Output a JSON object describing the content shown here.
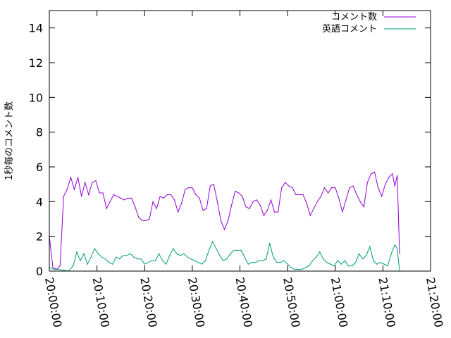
{
  "chart_data": {
    "type": "line",
    "title": "",
    "xlabel": "",
    "ylabel": "1秒毎のコメント数",
    "ylim": [
      0,
      15
    ],
    "xlim": [
      "20:00:00",
      "21:20:00"
    ],
    "grid": false,
    "legend_position": "top-right",
    "y_ticks": [
      "0",
      "2",
      "4",
      "6",
      "8",
      "10",
      "12",
      "14"
    ],
    "x_ticks": [
      "20:00:00",
      "20:10:00",
      "20:20:00",
      "20:30:00",
      "20:40:00",
      "20:50:00",
      "21:00:00",
      "21:10:00",
      "21:20:00"
    ],
    "series": [
      {
        "name": "コメント数",
        "color": "#9400d3",
        "points": [
          [
            "20:00:00",
            2.0
          ],
          [
            "20:00:45",
            0.2
          ],
          [
            "20:01:30",
            0.1
          ],
          [
            "20:02:15",
            0.3
          ],
          [
            "20:03:00",
            4.3
          ],
          [
            "20:03:45",
            4.7
          ],
          [
            "20:04:30",
            5.4
          ],
          [
            "20:05:15",
            4.7
          ],
          [
            "20:06:00",
            5.4
          ],
          [
            "20:06:45",
            4.3
          ],
          [
            "20:07:30",
            5.1
          ],
          [
            "20:08:15",
            4.4
          ],
          [
            "20:09:00",
            5.1
          ],
          [
            "20:09:45",
            5.2
          ],
          [
            "20:10:30",
            4.5
          ],
          [
            "20:11:15",
            4.5
          ],
          [
            "20:12:00",
            3.6
          ],
          [
            "20:12:45",
            4.0
          ],
          [
            "20:13:30",
            4.4
          ],
          [
            "20:14:15",
            4.3
          ],
          [
            "20:15:00",
            4.2
          ],
          [
            "20:15:45",
            4.1
          ],
          [
            "20:16:30",
            4.2
          ],
          [
            "20:17:15",
            4.2
          ],
          [
            "20:18:00",
            3.7
          ],
          [
            "20:18:45",
            3.1
          ],
          [
            "20:19:30",
            2.9
          ],
          [
            "20:20:15",
            2.9
          ],
          [
            "20:21:00",
            3.0
          ],
          [
            "20:21:45",
            4.0
          ],
          [
            "20:22:30",
            3.6
          ],
          [
            "20:23:15",
            4.3
          ],
          [
            "20:24:00",
            4.2
          ],
          [
            "20:24:45",
            4.4
          ],
          [
            "20:25:30",
            4.4
          ],
          [
            "20:26:15",
            4.1
          ],
          [
            "20:27:00",
            3.4
          ],
          [
            "20:27:45",
            3.9
          ],
          [
            "20:28:30",
            4.7
          ],
          [
            "20:29:15",
            4.8
          ],
          [
            "20:30:00",
            4.8
          ],
          [
            "20:30:45",
            4.4
          ],
          [
            "20:31:30",
            4.2
          ],
          [
            "20:32:15",
            3.5
          ],
          [
            "20:33:00",
            3.6
          ],
          [
            "20:33:45",
            4.9
          ],
          [
            "20:34:30",
            5.0
          ],
          [
            "20:35:15",
            4.0
          ],
          [
            "20:36:00",
            2.9
          ],
          [
            "20:36:45",
            2.4
          ],
          [
            "20:37:30",
            2.9
          ],
          [
            "20:38:15",
            3.8
          ],
          [
            "20:39:00",
            4.6
          ],
          [
            "20:39:45",
            4.5
          ],
          [
            "20:40:30",
            4.3
          ],
          [
            "20:41:15",
            3.7
          ],
          [
            "20:42:00",
            3.6
          ],
          [
            "20:42:45",
            4.0
          ],
          [
            "20:43:30",
            4.1
          ],
          [
            "20:44:15",
            3.8
          ],
          [
            "20:45:00",
            3.2
          ],
          [
            "20:45:45",
            3.5
          ],
          [
            "20:46:30",
            4.1
          ],
          [
            "20:47:15",
            3.4
          ],
          [
            "20:48:00",
            3.4
          ],
          [
            "20:48:45",
            4.8
          ],
          [
            "20:49:30",
            5.1
          ],
          [
            "20:50:15",
            4.9
          ],
          [
            "20:51:00",
            4.8
          ],
          [
            "20:51:45",
            4.4
          ],
          [
            "20:52:30",
            4.4
          ],
          [
            "20:53:15",
            4.4
          ],
          [
            "20:54:00",
            3.9
          ],
          [
            "20:54:45",
            3.2
          ],
          [
            "20:55:30",
            3.6
          ],
          [
            "20:56:15",
            4.0
          ],
          [
            "20:57:00",
            4.3
          ],
          [
            "20:57:45",
            4.8
          ],
          [
            "20:58:30",
            4.5
          ],
          [
            "20:59:15",
            4.8
          ],
          [
            "21:00:00",
            4.8
          ],
          [
            "21:00:45",
            4.2
          ],
          [
            "21:01:30",
            3.4
          ],
          [
            "21:02:15",
            4.1
          ],
          [
            "21:03:00",
            4.8
          ],
          [
            "21:03:45",
            4.9
          ],
          [
            "21:04:30",
            4.4
          ],
          [
            "21:05:15",
            4.0
          ],
          [
            "21:06:00",
            3.7
          ],
          [
            "21:06:45",
            5.1
          ],
          [
            "21:07:30",
            5.6
          ],
          [
            "21:08:15",
            5.7
          ],
          [
            "21:09:00",
            4.8
          ],
          [
            "21:09:45",
            4.3
          ],
          [
            "21:10:30",
            5.0
          ],
          [
            "21:11:15",
            5.4
          ],
          [
            "21:12:00",
            5.6
          ],
          [
            "21:12:30",
            4.9
          ],
          [
            "21:13:00",
            5.5
          ],
          [
            "21:13:30",
            1.0
          ]
        ]
      },
      {
        "name": "英語コメント",
        "color": "#009e73",
        "points": [
          [
            "20:00:00",
            0.2
          ],
          [
            "20:01:00",
            0.1
          ],
          [
            "20:02:00",
            0.1
          ],
          [
            "20:03:00",
            0.05
          ],
          [
            "20:04:00",
            0.0
          ],
          [
            "20:05:00",
            0.3
          ],
          [
            "20:05:45",
            1.1
          ],
          [
            "20:06:30",
            0.6
          ],
          [
            "20:07:15",
            1.0
          ],
          [
            "20:08:00",
            0.4
          ],
          [
            "20:08:45",
            0.8
          ],
          [
            "20:09:30",
            1.3
          ],
          [
            "20:10:15",
            1.0
          ],
          [
            "20:11:00",
            0.8
          ],
          [
            "20:11:45",
            0.7
          ],
          [
            "20:12:30",
            0.5
          ],
          [
            "20:13:15",
            0.4
          ],
          [
            "20:14:00",
            0.8
          ],
          [
            "20:14:45",
            0.7
          ],
          [
            "20:15:30",
            0.9
          ],
          [
            "20:16:15",
            0.9
          ],
          [
            "20:17:00",
            1.0
          ],
          [
            "20:17:45",
            0.8
          ],
          [
            "20:18:30",
            0.7
          ],
          [
            "20:19:15",
            0.7
          ],
          [
            "20:20:00",
            0.4
          ],
          [
            "20:20:45",
            0.5
          ],
          [
            "20:21:30",
            0.6
          ],
          [
            "20:22:15",
            0.6
          ],
          [
            "20:23:00",
            1.0
          ],
          [
            "20:23:45",
            0.6
          ],
          [
            "20:24:30",
            0.4
          ],
          [
            "20:25:15",
            0.9
          ],
          [
            "20:26:00",
            1.3
          ],
          [
            "20:26:45",
            1.0
          ],
          [
            "20:27:30",
            0.9
          ],
          [
            "20:28:15",
            1.0
          ],
          [
            "20:29:00",
            0.8
          ],
          [
            "20:29:45",
            0.7
          ],
          [
            "20:30:30",
            0.6
          ],
          [
            "20:31:15",
            0.5
          ],
          [
            "20:32:00",
            0.4
          ],
          [
            "20:32:45",
            0.6
          ],
          [
            "20:33:30",
            1.2
          ],
          [
            "20:34:15",
            1.7
          ],
          [
            "20:35:00",
            1.3
          ],
          [
            "20:35:45",
            0.9
          ],
          [
            "20:36:30",
            0.6
          ],
          [
            "20:37:15",
            0.7
          ],
          [
            "20:38:00",
            1.0
          ],
          [
            "20:38:45",
            1.2
          ],
          [
            "20:39:30",
            1.2
          ],
          [
            "20:40:15",
            1.2
          ],
          [
            "20:41:00",
            0.8
          ],
          [
            "20:41:45",
            0.4
          ],
          [
            "20:42:30",
            0.5
          ],
          [
            "20:43:15",
            0.5
          ],
          [
            "20:44:00",
            0.6
          ],
          [
            "20:44:45",
            0.6
          ],
          [
            "20:45:30",
            0.7
          ],
          [
            "20:46:15",
            1.6
          ],
          [
            "20:47:00",
            0.8
          ],
          [
            "20:47:45",
            0.5
          ],
          [
            "20:48:30",
            0.5
          ],
          [
            "20:49:15",
            0.6
          ],
          [
            "20:50:00",
            0.4
          ],
          [
            "20:50:45",
            0.2
          ],
          [
            "20:51:30",
            0.1
          ],
          [
            "20:52:15",
            0.1
          ],
          [
            "20:53:00",
            0.1
          ],
          [
            "20:53:45",
            0.2
          ],
          [
            "20:54:30",
            0.3
          ],
          [
            "20:55:15",
            0.6
          ],
          [
            "20:56:00",
            0.8
          ],
          [
            "20:56:45",
            1.1
          ],
          [
            "20:57:30",
            0.7
          ],
          [
            "20:58:15",
            0.5
          ],
          [
            "20:59:00",
            0.4
          ],
          [
            "20:59:45",
            0.3
          ],
          [
            "21:00:30",
            0.6
          ],
          [
            "21:01:15",
            0.4
          ],
          [
            "21:02:00",
            0.6
          ],
          [
            "21:02:45",
            0.3
          ],
          [
            "21:03:30",
            0.3
          ],
          [
            "21:04:15",
            0.5
          ],
          [
            "21:05:00",
            1.0
          ],
          [
            "21:05:45",
            0.7
          ],
          [
            "21:06:30",
            0.9
          ],
          [
            "21:07:15",
            1.4
          ],
          [
            "21:08:00",
            0.6
          ],
          [
            "21:08:45",
            0.4
          ],
          [
            "21:09:30",
            0.5
          ],
          [
            "21:10:15",
            0.4
          ],
          [
            "21:11:00",
            0.3
          ],
          [
            "21:11:45",
            1.0
          ],
          [
            "21:12:30",
            1.5
          ],
          [
            "21:13:00",
            1.3
          ],
          [
            "21:13:30",
            0.0
          ]
        ]
      }
    ]
  }
}
